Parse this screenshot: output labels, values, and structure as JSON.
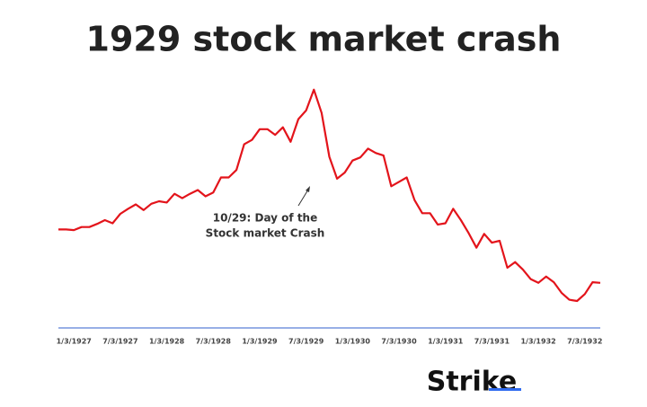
{
  "chart_data": {
    "type": "line",
    "title": "1929 stock market crash",
    "x": [
      "1926-11",
      "1926-12",
      "1927-01",
      "1927-02",
      "1927-03",
      "1927-04",
      "1927-05",
      "1927-06",
      "1927-07",
      "1927-08",
      "1927-09",
      "1927-10",
      "1927-11",
      "1927-12",
      "1928-01",
      "1928-02",
      "1928-03",
      "1928-04",
      "1928-05",
      "1928-06",
      "1928-07",
      "1928-08",
      "1928-09",
      "1928-10",
      "1928-11",
      "1928-12",
      "1929-01",
      "1929-02",
      "1929-03",
      "1929-04",
      "1929-05",
      "1929-06",
      "1929-07",
      "1929-08",
      "1929-09",
      "1929-10",
      "1929-11",
      "1929-12",
      "1930-01",
      "1930-02",
      "1930-03",
      "1930-04",
      "1930-05",
      "1930-06",
      "1930-07",
      "1930-08",
      "1930-09",
      "1930-10",
      "1930-11",
      "1930-12",
      "1931-01",
      "1931-02",
      "1931-03",
      "1931-04",
      "1931-05",
      "1931-06",
      "1931-07",
      "1931-08",
      "1931-09",
      "1931-10",
      "1931-11",
      "1931-12",
      "1932-01",
      "1932-02",
      "1932-03",
      "1932-04",
      "1932-05",
      "1932-06",
      "1932-07",
      "1932-08",
      "1932-09"
    ],
    "series": [
      {
        "color": "#e3141b",
        "values": [
          157,
          157,
          156,
          161,
          161,
          166,
          172,
          167,
          182,
          190,
          197,
          188,
          198,
          202,
          200,
          214,
          207,
          214,
          220,
          210,
          216,
          240,
          240,
          252,
          293,
          300,
          317,
          317,
          308,
          320,
          297,
          333,
          347,
          380,
          343,
          273,
          238,
          248,
          267,
          272,
          286,
          279,
          275,
          226,
          233,
          240,
          204,
          183,
          183,
          165,
          167,
          190,
          172,
          151,
          128,
          150,
          136,
          139,
          96,
          105,
          93,
          78,
          72,
          82,
          73,
          56,
          45,
          43,
          54,
          73,
          72
        ]
      }
    ],
    "xlim": [
      "1926-11",
      "1932-09"
    ],
    "ylim": [
      0,
      450
    ],
    "xticks": [
      {
        "value": "1927-01",
        "label": "1/3/1927"
      },
      {
        "value": "1927-07",
        "label": "7/3/1927"
      },
      {
        "value": "1928-01",
        "label": "1/3/1928"
      },
      {
        "value": "1928-07",
        "label": "7/3/1928"
      },
      {
        "value": "1929-01",
        "label": "1/3/1929"
      },
      {
        "value": "1929-07",
        "label": "7/3/1929"
      },
      {
        "value": "1930-01",
        "label": "1/3/1930"
      },
      {
        "value": "1930-07",
        "label": "7/3/1930"
      },
      {
        "value": "1931-01",
        "label": "1/3/1931"
      },
      {
        "value": "1931-07",
        "label": "7/3/1931"
      },
      {
        "value": "1932-01",
        "label": "1/3/1932"
      },
      {
        "value": "1932-07",
        "label": "7/3/1932"
      }
    ],
    "annotation": [
      "10/29: Day of the",
      "Stock market Crash"
    ],
    "logo": "Strike"
  }
}
